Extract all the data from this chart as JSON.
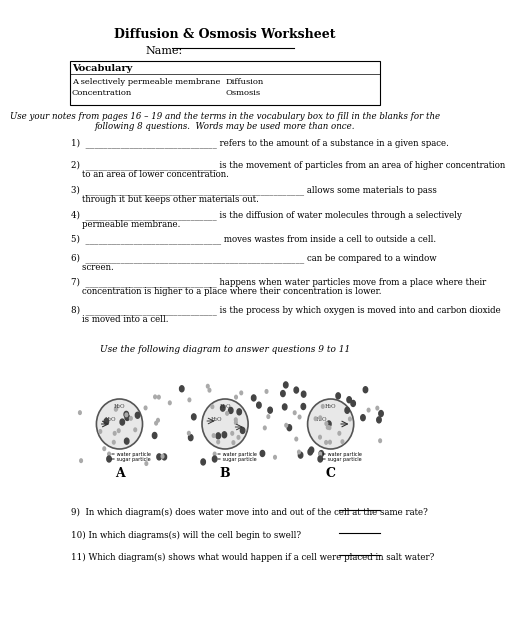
{
  "title": "Diffusion & Osmosis Worksheet",
  "name_label": "Name:",
  "vocab_header": "Vocabulary",
  "vocab_items": [
    [
      "A selectively permeable membrane",
      "Diffusion"
    ],
    [
      "Concentration",
      "Osmosis"
    ]
  ],
  "instructions": "Use your notes from pages 16 – 19 and the terms in the vocabulary box to fill in the blanks for the\nfollowing 8 questions.  Words may be used more than once.",
  "questions": [
    "1)  ______________________________ refers to the amount of a substance in a given space.",
    "2)  ______________________________ is the movement of particles from an area of higher concentration\n    to an area of lower concentration.",
    "3)  __________________________________________________ allows some materials to pass\n    through it but keeps other materials out.",
    "4)  ______________________________ is the diffusion of water molecules through a selectively\n    permeable membrane.",
    "5)  _______________________________ moves wastes from inside a cell to outside a cell.",
    "6)  __________________________________________________ can be compared to a window\n    screen.",
    "7)  ______________________________ happens when water particles move from a place where their\n    concentration is higher to a place where their concentration is lower.",
    "8)  ______________________________ is the process by which oxygen is moved into and carbon dioxide\n    is moved into a cell."
  ],
  "diagram_instruction": "Use the following diagram to answer questions 9 to 11",
  "diagram_labels": [
    "A",
    "B",
    "C"
  ],
  "questions_9_11": [
    "9)  In which diagram(s) does water move into and out of the cell at the same rate?",
    "10) In which diagrams(s) will the cell begin to swell?",
    "11) Which diagram(s) shows what would happen if a cell were placed in salt water?"
  ],
  "bg_color": "#ffffff",
  "text_color": "#000000",
  "border_color": "#000000",
  "font_size_title": 9,
  "font_size_body": 7,
  "font_size_small": 5.5
}
